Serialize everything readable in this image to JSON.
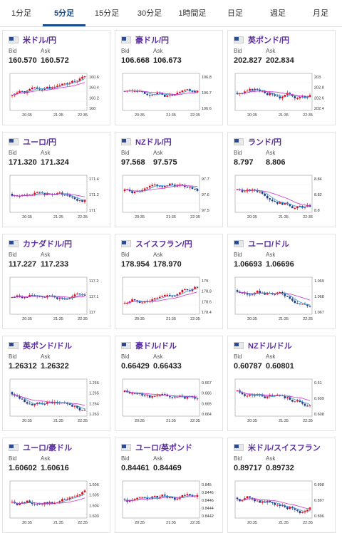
{
  "tabs": [
    {
      "label": "1分足"
    },
    {
      "label": "5分足"
    },
    {
      "label": "15分足"
    },
    {
      "label": "30分足"
    },
    {
      "label": "1時間足"
    },
    {
      "label": "日足"
    },
    {
      "label": "週足"
    },
    {
      "label": "月足"
    }
  ],
  "active_tab": 1,
  "labels": {
    "bid": "Bid",
    "ask": "Ask"
  },
  "colors": {
    "up": "#e60012",
    "down": "#1e3c8c",
    "ma_short": "#3a9ad9",
    "ma_long": "#cc33cc",
    "title": "#5a2ca0"
  },
  "cards": [
    {
      "name": "米ドル/円",
      "flag": "us-flag-icon",
      "bid": "160.570",
      "ask": "160.572",
      "ticks": [
        "160.6",
        "160.4",
        "160.2",
        "160"
      ],
      "xlabels": [
        "20:35",
        "21:35",
        "22:35"
      ],
      "seed": 1,
      "trend": 0.4
    },
    {
      "name": "豪ドル/円",
      "flag": "au-flag-icon",
      "bid": "106.668",
      "ask": "106.673",
      "ticks": [
        "106.8",
        "106.7",
        "106.6"
      ],
      "xlabels": [
        "20:35",
        "21:35",
        "22:35"
      ],
      "seed": 2,
      "trend": -0.1
    },
    {
      "name": "英ポンド/円",
      "flag": "gb-flag-icon",
      "bid": "202.827",
      "ask": "202.834",
      "ticks": [
        "203",
        "202.8",
        "202.6",
        "202.4"
      ],
      "xlabels": [
        "20:35",
        "21:35",
        "22:35"
      ],
      "seed": 3,
      "trend": 0.1
    },
    {
      "name": "ユーロ/円",
      "flag": "eu-flag-icon",
      "bid": "171.320",
      "ask": "171.324",
      "ticks": [
        "171.4",
        "171.2",
        "171"
      ],
      "xlabels": [
        "20:35",
        "21:35",
        "22:35"
      ],
      "seed": 4,
      "trend": 0.0
    },
    {
      "name": "NZドル/円",
      "flag": "nz-flag-icon",
      "bid": "97.568",
      "ask": "97.575",
      "ticks": [
        "97.7",
        "97.6",
        "97.5"
      ],
      "xlabels": [
        "20:35",
        "21:35",
        "22:35"
      ],
      "seed": 5,
      "trend": -0.3
    },
    {
      "name": "ランド/円",
      "flag": "za-flag-icon",
      "bid": "8.797",
      "ask": "8.806",
      "ticks": [
        "8.84",
        "8.82",
        "8.8"
      ],
      "xlabels": [
        "20:35",
        "21:35",
        "22:35"
      ],
      "seed": 6,
      "trend": -0.4
    },
    {
      "name": "カナダドル/円",
      "flag": "ca-flag-icon",
      "bid": "117.227",
      "ask": "117.233",
      "ticks": [
        "117.2",
        "117.1",
        "117"
      ],
      "xlabels": [
        "20:35",
        "21:35",
        "22:35"
      ],
      "seed": 7,
      "trend": 0.2
    },
    {
      "name": "スイスフラン/円",
      "flag": "ch-flag-icon",
      "bid": "178.954",
      "ask": "178.970",
      "ticks": [
        "179",
        "178.8",
        "178.6",
        "178.4"
      ],
      "xlabels": [
        "20:35",
        "21:35",
        "22:35"
      ],
      "seed": 8,
      "trend": 0.8
    },
    {
      "name": "ユーロ/ドル",
      "flag": "eu-us-flag-icon",
      "bid": "1.06693",
      "ask": "1.06696",
      "ticks": [
        "1.069",
        "1.068",
        "1.067"
      ],
      "xlabels": [
        "20:35",
        "21:35",
        "22:35"
      ],
      "seed": 9,
      "trend": -0.6
    },
    {
      "name": "英ポンド/ドル",
      "flag": "gb-us-flag-icon",
      "bid": "1.26312",
      "ask": "1.26322",
      "ticks": [
        "1.266",
        "1.265",
        "1.264",
        "1.263"
      ],
      "xlabels": [
        "20:35",
        "21:35",
        "22:35"
      ],
      "seed": 10,
      "trend": -0.6
    },
    {
      "name": "豪ドル/ドル",
      "flag": "au-us-flag-icon",
      "bid": "0.66429",
      "ask": "0.66433",
      "ticks": [
        "0.667",
        "0.666",
        "0.665",
        "0.664"
      ],
      "xlabels": [
        "20:35",
        "21:35",
        "22:35"
      ],
      "seed": 11,
      "trend": -0.6
    },
    {
      "name": "NZドル/ドル",
      "flag": "nz-us-flag-icon",
      "bid": "0.60787",
      "ask": "0.60801",
      "ticks": [
        "0.61",
        "0.609",
        "0.608"
      ],
      "xlabels": [
        "20:35",
        "21:35",
        "22:35"
      ],
      "seed": 12,
      "trend": -0.7
    },
    {
      "name": "ユーロ/豪ドル",
      "flag": "eu-au-flag-icon",
      "bid": "1.60602",
      "ask": "1.60616",
      "ticks": [
        "1.606",
        "1.605",
        "1.604",
        "1.603"
      ],
      "xlabels": [
        "20:35",
        "21:35",
        "22:35"
      ],
      "seed": 13,
      "trend": 0.3
    },
    {
      "name": "ユーロ/英ポンド",
      "flag": "eu-gb-flag-icon",
      "bid": "0.84461",
      "ask": "0.84469",
      "ticks": [
        "0.845",
        "0.8446",
        "0.8446",
        "0.8444",
        "0.8442"
      ],
      "xlabels": [
        "20:35",
        "21:35",
        "22:35"
      ],
      "seed": 14,
      "trend": 0.0
    },
    {
      "name": "米ドル/スイスフラン",
      "flag": "us-ch-flag-icon",
      "bid": "0.89717",
      "ask": "0.89732",
      "ticks": [
        "0.898",
        "0.897",
        "0.896"
      ],
      "xlabels": [
        "20:35",
        "21:35",
        "22:35"
      ],
      "seed": 15,
      "trend": -0.2
    }
  ]
}
